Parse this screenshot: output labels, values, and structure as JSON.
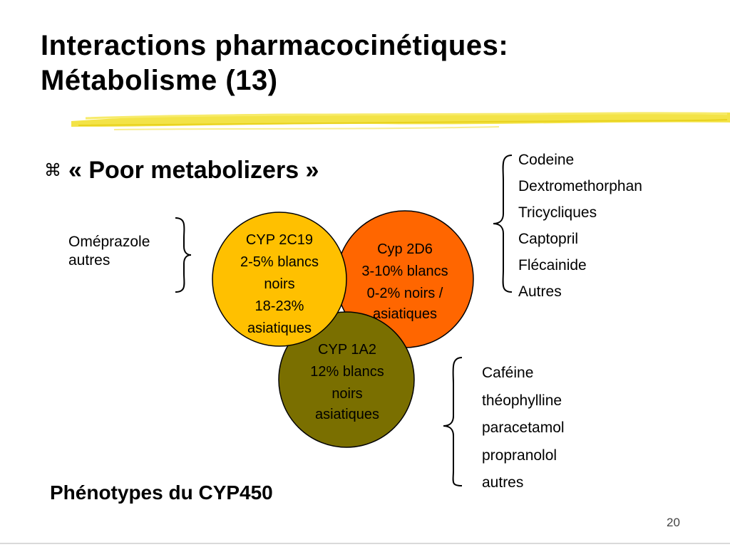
{
  "title": {
    "line1": "Interactions pharmacocinétiques:",
    "line2": "Métabolisme (13)"
  },
  "bullet": {
    "icon": "z-bullet-icon",
    "text": "« Poor metabolizers »"
  },
  "left_group": {
    "items": [
      "Oméprazole",
      "autres"
    ]
  },
  "circles": [
    {
      "id": "cyp2c19",
      "color": "#FFC000",
      "lines": [
        "CYP 2C19",
        "2-5% blancs",
        "noirs",
        "18-23%",
        "asiatiques"
      ]
    },
    {
      "id": "cyp2d6",
      "color": "#FF6600",
      "lines": [
        "Cyp 2D6",
        "3-10% blancs",
        "0-2% noirs /",
        "asiatiques"
      ]
    },
    {
      "id": "cyp1a2",
      "color": "#7A6F00",
      "lines": [
        "CYP 1A2",
        "12% blancs",
        "noirs",
        "asiatiques"
      ]
    }
  ],
  "right_top_group": {
    "items": [
      "Codeine",
      "Dextromethorphan",
      "Tricycliques",
      "Captopril",
      "Flécainide",
      "Autres"
    ]
  },
  "right_bottom_group": {
    "items": [
      "Caféine",
      "théophylline",
      "paracetamol",
      "propranolol",
      "autres"
    ]
  },
  "footer": {
    "label": "Phénotypes du CYP450"
  },
  "page_number": "20",
  "colors": {
    "accent_stroke": "#F2E033"
  }
}
